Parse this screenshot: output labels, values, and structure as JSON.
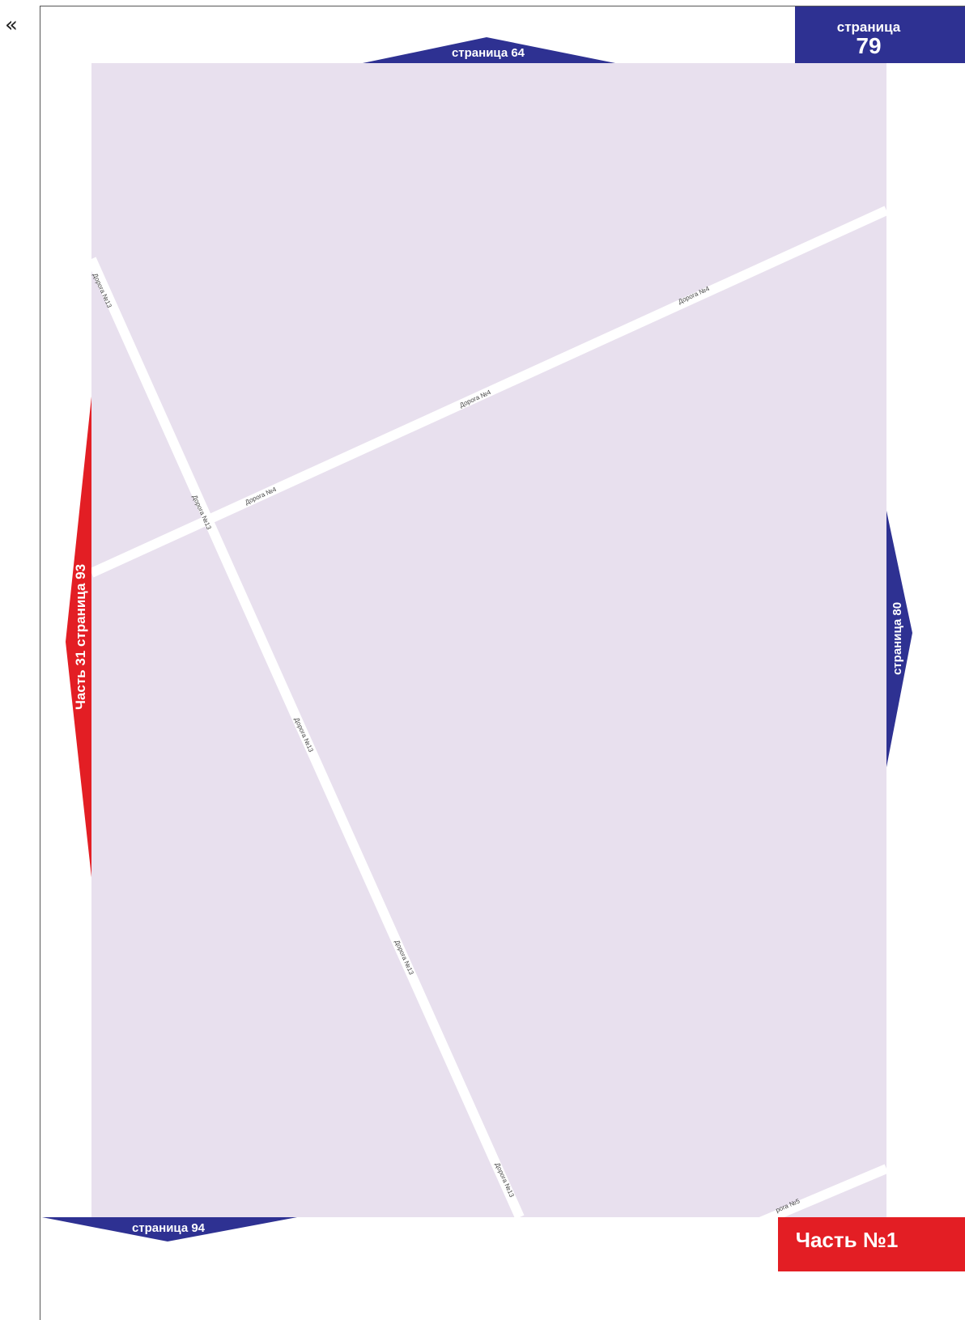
{
  "back_nav": {
    "glyph": "«"
  },
  "colors": {
    "map_fill": "#e8e0ee",
    "road": "#ffffff",
    "nav_blue": "#2e3192",
    "nav_red": "#e31e24",
    "text": "#ffffff"
  },
  "navigation": {
    "top": {
      "label": "страница 64"
    },
    "top_right": {
      "line1": "страница",
      "line2": "79"
    },
    "right": {
      "label": "страница 80"
    },
    "left": {
      "label": "Часть 31 страница 93"
    },
    "bottom_left": {
      "label": "страница 94"
    },
    "bottom_right": {
      "label": "Часть №1"
    }
  },
  "roads": {
    "road4": {
      "name": "Дорога №4"
    },
    "road13": {
      "name": "Дорога №13"
    },
    "road5": {
      "name": "рога №5"
    }
  }
}
